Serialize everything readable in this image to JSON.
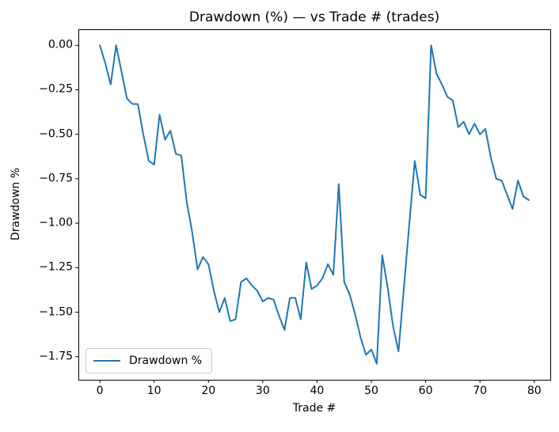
{
  "title": "Drawdown (%) — vs Trade # (trades)",
  "axes": {
    "xlabel": "Trade #",
    "ylabel": "Drawdown %",
    "xtick_labels": [
      "0",
      "10",
      "20",
      "30",
      "40",
      "50",
      "60",
      "70",
      "80"
    ],
    "ytick_labels": [
      "0.00",
      "−0.25",
      "−0.50",
      "−0.75",
      "−1.00",
      "−1.25",
      "−1.50",
      "−1.75"
    ]
  },
  "legend": {
    "label": "Drawdown %"
  },
  "colors": {
    "line": "#1f77b4",
    "spine": "#000000",
    "legend_border": "#cccccc",
    "background": "#ffffff"
  },
  "chart_data": {
    "type": "line",
    "title": "Drawdown (%) — vs Trade # (trades)",
    "xlabel": "Trade #",
    "ylabel": "Drawdown %",
    "grid": false,
    "legend_position": "lower left",
    "xticks": [
      0,
      10,
      20,
      30,
      40,
      50,
      60,
      70,
      80
    ],
    "yticks": [
      0,
      -0.25,
      -0.5,
      -0.75,
      -1,
      -1.25,
      -1.5,
      -1.75
    ],
    "xlim": [
      -3.95,
      82.95
    ],
    "ylim": [
      -1.88,
      0.09
    ],
    "series": [
      {
        "name": "Drawdown %",
        "color": "#1f77b4",
        "x": [
          0,
          1,
          2,
          3,
          4,
          5,
          6,
          7,
          8,
          9,
          10,
          11,
          12,
          13,
          14,
          15,
          16,
          17,
          18,
          19,
          20,
          21,
          22,
          23,
          24,
          25,
          26,
          27,
          28,
          29,
          30,
          31,
          32,
          33,
          34,
          35,
          36,
          37,
          38,
          39,
          40,
          41,
          42,
          43,
          44,
          45,
          46,
          47,
          48,
          49,
          50,
          51,
          52,
          53,
          54,
          55,
          56,
          57,
          58,
          59,
          60,
          61,
          62,
          63,
          64,
          65,
          66,
          67,
          68,
          69,
          70,
          71,
          72,
          73,
          74,
          75,
          76,
          77,
          78,
          79
        ],
        "values": [
          0.0,
          -0.1,
          -0.22,
          0.0,
          -0.15,
          -0.3,
          -0.33,
          -0.33,
          -0.5,
          -0.65,
          -0.67,
          -0.39,
          -0.53,
          -0.48,
          -0.61,
          -0.62,
          -0.88,
          -1.05,
          -1.26,
          -1.19,
          -1.23,
          -1.38,
          -1.5,
          -1.42,
          -1.55,
          -1.54,
          -1.33,
          -1.31,
          -1.35,
          -1.38,
          -1.44,
          -1.42,
          -1.43,
          -1.52,
          -1.6,
          -1.42,
          -1.42,
          -1.54,
          -1.22,
          -1.37,
          -1.35,
          -1.31,
          -1.23,
          -1.29,
          -0.78,
          -1.33,
          -1.4,
          -1.51,
          -1.64,
          -1.74,
          -1.71,
          -1.79,
          -1.18,
          -1.36,
          -1.58,
          -1.72,
          -1.36,
          -1.0,
          -0.65,
          -0.84,
          -0.86,
          0.0,
          -0.16,
          -0.22,
          -0.29,
          -0.31,
          -0.46,
          -0.43,
          -0.5,
          -0.44,
          -0.5,
          -0.47,
          -0.63,
          -0.75,
          -0.76,
          -0.84,
          -0.92,
          -0.76,
          -0.85,
          -0.87
        ]
      }
    ]
  }
}
